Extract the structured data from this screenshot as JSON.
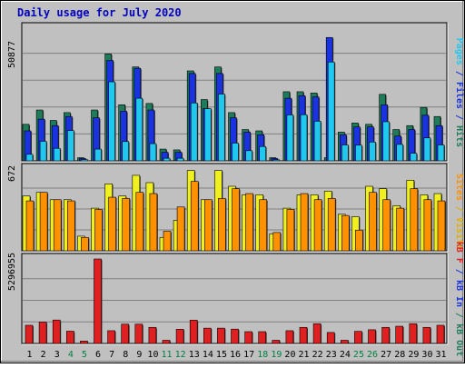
{
  "chart_data": {
    "type": "bar",
    "title": "Daily usage for July 2020",
    "categories": [
      "1",
      "2",
      "3",
      "4",
      "5",
      "6",
      "7",
      "8",
      "9",
      "10",
      "11",
      "12",
      "13",
      "14",
      "15",
      "16",
      "17",
      "18",
      "19",
      "20",
      "21",
      "22",
      "23",
      "24",
      "25",
      "26",
      "27",
      "28",
      "29",
      "30",
      "31"
    ],
    "weekend_days": [
      "4",
      "5",
      "11",
      "12",
      "18",
      "19",
      "25",
      "26"
    ],
    "panels": [
      {
        "name": "hits-files-pages",
        "max_label": "50877",
        "max_value": 50877,
        "series": [
          {
            "name": "Hits",
            "color": "#1e7c5a",
            "values": [
              14000,
              19500,
              15500,
              18500,
              1200,
              19500,
              41000,
              21500,
              36000,
              22000,
              4500,
              4200,
              34500,
              23500,
              36000,
              18500,
              12000,
              11500,
              1200,
              26500,
              26500,
              26000,
              1200,
              11000,
              14500,
              14000,
              25500,
              12000,
              13500,
              20500,
              17000
            ]
          },
          {
            "name": "Files",
            "color": "#1a32e0",
            "values": [
              11500,
              16000,
              13500,
              17000,
              900,
              16500,
              38500,
              19000,
              35500,
              19500,
              3300,
              3300,
              33500,
              20000,
              33500,
              16500,
              11000,
              10000,
              900,
              24000,
              25000,
              24500,
              47300,
              10000,
              13000,
              13000,
              21500,
              9500,
              12000,
              17500,
              13500
            ]
          },
          {
            "name": "Pages",
            "color": "#20c8f0",
            "values": [
              2500,
              7500,
              4800,
              11600,
              500,
              4500,
              30300,
              7400,
              24000,
              6600,
              1000,
              1000,
              22200,
              20000,
              25600,
              6800,
              3900,
              5500,
              400,
              17600,
              17700,
              15200,
              37900,
              6100,
              6000,
              7200,
              15000,
              6300,
              2900,
              8800,
              6100
            ]
          }
        ]
      },
      {
        "name": "visits-sites",
        "max_label": "672",
        "max_value": 672,
        "series": [
          {
            "name": "Visits",
            "color": "#f0f020",
            "values": [
              450,
              480,
              420,
              420,
              120,
              350,
              550,
              450,
              620,
              560,
              110,
              250,
              660,
              420,
              660,
              530,
              460,
              460,
              140,
              350,
              460,
              460,
              490,
              300,
              280,
              530,
              510,
              370,
              580,
              460,
              470
            ]
          },
          {
            "name": "Sites",
            "color": "#ff9000",
            "values": [
              410,
              480,
              420,
              410,
              110,
              340,
              440,
              430,
              480,
              470,
              160,
              360,
              570,
              420,
              430,
              510,
              470,
              420,
              150,
              340,
              470,
              420,
              430,
              290,
              170,
              480,
              420,
              350,
              510,
              420,
              410
            ]
          }
        ]
      },
      {
        "name": "kbytes",
        "max_label": "5296955",
        "max_value": 5296955,
        "series": [
          {
            "name": "KB F",
            "color": "#e02020",
            "values": [
              1140000,
              1340000,
              1470000,
              770000,
              150000,
              5296955,
              800000,
              1210000,
              1210000,
              1010000,
              200000,
              890000,
              1460000,
              960000,
              960000,
              900000,
              740000,
              740000,
              200000,
              800000,
              1010000,
              1240000,
              690000,
              200000,
              760000,
              860000,
              1010000,
              1080000,
              1240000,
              1010000,
              1140000
            ]
          },
          {
            "name": "KB In",
            "color": "#1a32e0",
            "values": []
          },
          {
            "name": "KB Out",
            "color": "#1e7c5a",
            "values": []
          }
        ]
      }
    ],
    "right_labels": {
      "hits": {
        "parts": [
          {
            "text": "Pages",
            "color": "#20c8f0"
          },
          {
            "text": " / ",
            "color": "#1a32e0"
          },
          {
            "text": "Files",
            "color": "#1a32e0"
          },
          {
            "text": " / ",
            "color": "#1a32e0"
          },
          {
            "text": "Hits",
            "color": "#1e7c5a"
          }
        ]
      },
      "visits": {
        "parts": [
          {
            "text": "Sites",
            "color": "#ff9000"
          },
          {
            "text": " / ",
            "color": "#e0b000"
          },
          {
            "text": "Visits",
            "color": "#e0b000"
          }
        ]
      },
      "kbytes": {
        "parts": [
          {
            "text": "kB F",
            "color": "#e02020"
          },
          {
            "text": " / ",
            "color": "#1a32e0"
          },
          {
            "text": "kB In",
            "color": "#1a32e0"
          },
          {
            "text": " / ",
            "color": "#1e7c5a"
          },
          {
            "text": "kB Out",
            "color": "#1e7c5a"
          }
        ]
      }
    },
    "colors": {
      "background": "#c0c0c0",
      "title": "#0000c0",
      "weekday_label": "#000000",
      "weekend_label": "#008040",
      "grid": "#808080"
    }
  }
}
